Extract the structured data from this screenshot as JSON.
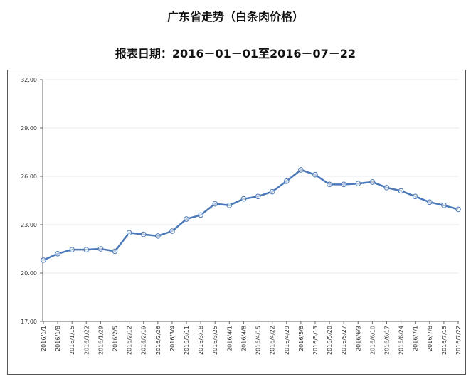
{
  "title": "广东省走势（白条肉价格）",
  "subtitle": "报表日期：2016－01－01至2016－07－22",
  "chart_data": {
    "type": "line",
    "title": "广东省走势（白条肉价格）",
    "xlabel": "",
    "ylabel": "",
    "ylim": [
      17,
      32
    ],
    "yticks": [
      "17.00",
      "20.00",
      "23.00",
      "26.00",
      "29.00",
      "32.00"
    ],
    "grid": true,
    "series_color": "#4a78b8",
    "categories": [
      "2016/1/1",
      "2016/1/8",
      "2016/1/15",
      "2016/1/22",
      "2016/1/29",
      "2016/2/5",
      "2016/2/12",
      "2016/2/19",
      "2016/2/26",
      "2016/3/4",
      "2016/3/11",
      "2016/3/18",
      "2016/3/25",
      "2016/4/1",
      "2016/4/8",
      "2016/4/15",
      "2016/4/22",
      "2016/4/29",
      "2016/5/6",
      "2016/5/13",
      "2016/5/20",
      "2016/5/27",
      "2016/6/3",
      "2016/6/10",
      "2016/6/17",
      "2016/6/24",
      "2016/7/1",
      "2016/7/8",
      "2016/7/15",
      "2016/7/22"
    ],
    "values": [
      20.8,
      21.2,
      21.45,
      21.45,
      21.5,
      21.35,
      22.5,
      22.4,
      22.3,
      22.6,
      23.35,
      23.6,
      24.3,
      24.2,
      24.6,
      24.75,
      25.05,
      25.7,
      26.4,
      26.1,
      25.5,
      25.5,
      25.55,
      25.65,
      25.3,
      25.1,
      24.75,
      24.4,
      24.2,
      23.95
    ]
  }
}
